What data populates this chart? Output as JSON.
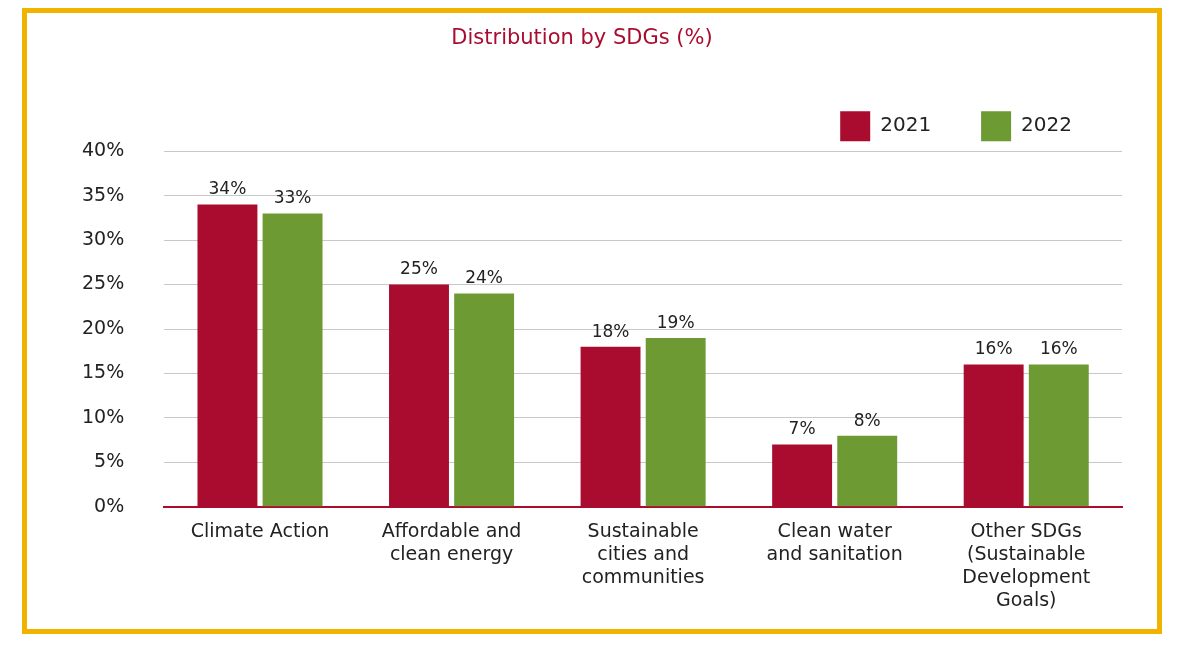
{
  "chart_data": {
    "type": "bar",
    "title": "Distribution by SDGs (%)",
    "categories": [
      "Climate Action",
      "Affordable and clean energy",
      "Sustainable cities and communities",
      "Clean water and sanitation",
      "Other SDGs (Sustainable Development Goals)"
    ],
    "series": [
      {
        "name": "2021",
        "color": "#a90c2f",
        "values": [
          34,
          25,
          18,
          7,
          16
        ],
        "value_labels": [
          "34%",
          "25%",
          "18%",
          "7%",
          "16%"
        ]
      },
      {
        "name": "2022",
        "color": "#6e9a33",
        "values": [
          33,
          24,
          19,
          8,
          16
        ],
        "value_labels": [
          "33%",
          "24%",
          "19%",
          "8%",
          "16%"
        ]
      }
    ],
    "ylim": [
      0,
      40
    ],
    "yticks": [
      {
        "value": 0,
        "label": "0%"
      },
      {
        "value": 5,
        "label": "5%"
      },
      {
        "value": 10,
        "label": "10%"
      },
      {
        "value": 15,
        "label": "15%"
      },
      {
        "value": 20,
        "label": "20%"
      },
      {
        "value": 25,
        "label": "25%"
      },
      {
        "value": 30,
        "label": "30%"
      },
      {
        "value": 35,
        "label": "35%"
      },
      {
        "value": 40,
        "label": "40%"
      }
    ],
    "grid": "y",
    "legend": "top right"
  }
}
